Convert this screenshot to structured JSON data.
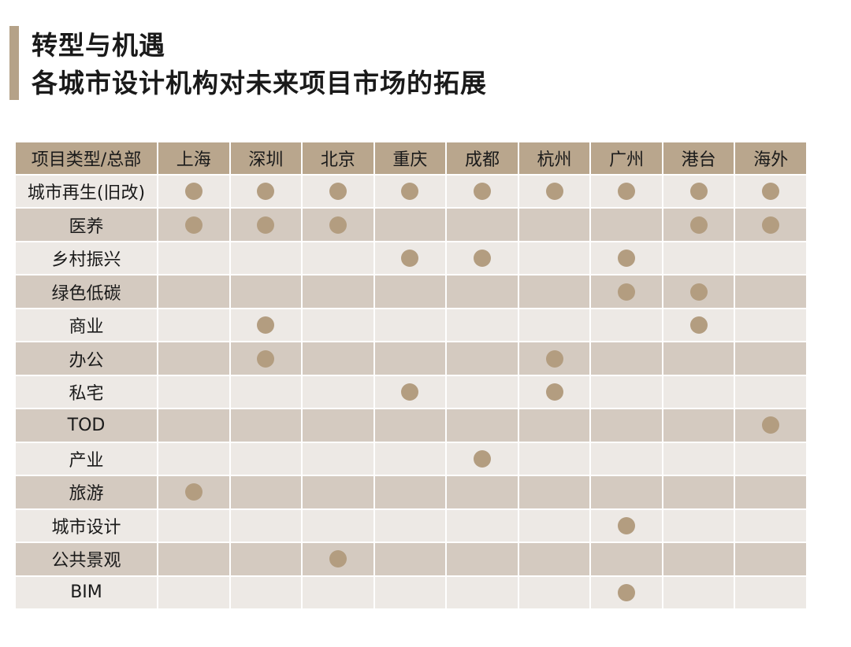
{
  "header": {
    "title": "转型与机遇",
    "subtitle": "各城市设计机构对未来项目市场的拓展"
  },
  "table": {
    "corner": "项目类型/总部",
    "columns": [
      "上海",
      "深圳",
      "北京",
      "重庆",
      "成都",
      "杭州",
      "广州",
      "港台",
      "海外"
    ],
    "rows": [
      {
        "label": "城市再生(旧改)",
        "cells": [
          true,
          true,
          true,
          true,
          true,
          true,
          true,
          true,
          true
        ]
      },
      {
        "label": "医养",
        "cells": [
          true,
          true,
          true,
          false,
          false,
          false,
          false,
          true,
          true
        ]
      },
      {
        "label": "乡村振兴",
        "cells": [
          false,
          false,
          false,
          true,
          true,
          false,
          true,
          false,
          false
        ]
      },
      {
        "label": "绿色低碳",
        "cells": [
          false,
          false,
          false,
          false,
          false,
          false,
          true,
          true,
          false
        ]
      },
      {
        "label": "商业",
        "cells": [
          false,
          true,
          false,
          false,
          false,
          false,
          false,
          true,
          false
        ]
      },
      {
        "label": "办公",
        "cells": [
          false,
          true,
          false,
          false,
          false,
          true,
          false,
          false,
          false
        ]
      },
      {
        "label": "私宅",
        "cells": [
          false,
          false,
          false,
          true,
          false,
          true,
          false,
          false,
          false
        ]
      },
      {
        "label": "TOD",
        "cells": [
          false,
          false,
          false,
          false,
          false,
          false,
          false,
          false,
          true
        ]
      },
      {
        "label": "产业",
        "cells": [
          false,
          false,
          false,
          false,
          true,
          false,
          false,
          false,
          false
        ]
      },
      {
        "label": "旅游",
        "cells": [
          true,
          false,
          false,
          false,
          false,
          false,
          false,
          false,
          false
        ]
      },
      {
        "label": "城市设计",
        "cells": [
          false,
          false,
          false,
          false,
          false,
          false,
          true,
          false,
          false
        ]
      },
      {
        "label": "公共景观",
        "cells": [
          false,
          false,
          true,
          false,
          false,
          false,
          false,
          false,
          false
        ]
      },
      {
        "label": "BIM",
        "cells": [
          false,
          false,
          false,
          false,
          false,
          false,
          true,
          false,
          false
        ]
      }
    ]
  }
}
